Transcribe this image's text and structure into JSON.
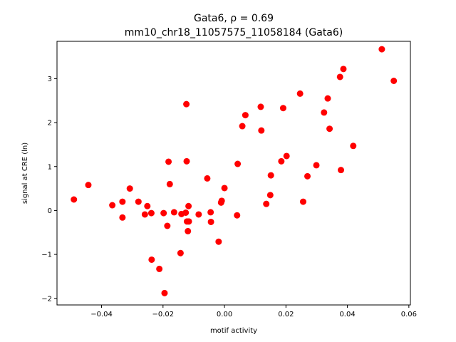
{
  "chart_data": {
    "type": "scatter",
    "title_line1": "Gata6, ρ = 0.69",
    "title_line2": "mm10_chr18_11057575_11058184 (Gata6)",
    "xlabel": "motif activity",
    "ylabel": "signal at CRE (ln)",
    "xlim": [
      -0.0545,
      0.0605
    ],
    "ylim": [
      -2.15,
      3.85
    ],
    "xticks": [
      -0.04,
      -0.02,
      0.0,
      0.02,
      0.04,
      0.06
    ],
    "xtick_labels": [
      "−0.04",
      "−0.02",
      "0.00",
      "0.02",
      "0.04",
      "0.06"
    ],
    "yticks": [
      -2,
      -1,
      0,
      1,
      2,
      3
    ],
    "ytick_labels": [
      "−2",
      "−1",
      "0",
      "1",
      "2",
      "3"
    ],
    "grid": false,
    "marker_color": "#ff0000",
    "points": [
      {
        "x": -0.049,
        "y": 0.25
      },
      {
        "x": -0.0443,
        "y": 0.58
      },
      {
        "x": -0.0365,
        "y": 0.12
      },
      {
        "x": -0.0332,
        "y": 0.2
      },
      {
        "x": -0.0332,
        "y": -0.16
      },
      {
        "x": -0.0308,
        "y": 0.5
      },
      {
        "x": -0.028,
        "y": 0.2
      },
      {
        "x": -0.0259,
        "y": -0.09
      },
      {
        "x": -0.0251,
        "y": 0.1
      },
      {
        "x": -0.0238,
        "y": -0.06
      },
      {
        "x": -0.0237,
        "y": -1.12
      },
      {
        "x": -0.0212,
        "y": -1.33
      },
      {
        "x": -0.0198,
        "y": -0.06
      },
      {
        "x": -0.0195,
        "y": -1.88
      },
      {
        "x": -0.0186,
        "y": -0.35
      },
      {
        "x": -0.0182,
        "y": 1.11
      },
      {
        "x": -0.0178,
        "y": 0.6
      },
      {
        "x": -0.0164,
        "y": -0.04
      },
      {
        "x": -0.0143,
        "y": -0.97
      },
      {
        "x": -0.014,
        "y": -0.08
      },
      {
        "x": -0.0126,
        "y": -0.05
      },
      {
        "x": -0.0124,
        "y": 2.42
      },
      {
        "x": -0.0123,
        "y": 1.12
      },
      {
        "x": -0.0122,
        "y": -0.25
      },
      {
        "x": -0.0119,
        "y": -0.47
      },
      {
        "x": -0.0117,
        "y": 0.1
      },
      {
        "x": -0.0116,
        "y": -0.25
      },
      {
        "x": -0.0084,
        "y": -0.09
      },
      {
        "x": -0.0056,
        "y": 0.73
      },
      {
        "x": -0.0045,
        "y": -0.04
      },
      {
        "x": -0.0044,
        "y": -0.26
      },
      {
        "x": -0.0019,
        "y": -0.71
      },
      {
        "x": -0.0011,
        "y": 0.18
      },
      {
        "x": -0.0009,
        "y": 0.22
      },
      {
        "x": 0.0,
        "y": 0.51
      },
      {
        "x": 0.0041,
        "y": -0.11
      },
      {
        "x": 0.0043,
        "y": 1.06
      },
      {
        "x": 0.0058,
        "y": 1.92
      },
      {
        "x": 0.0068,
        "y": 2.17
      },
      {
        "x": 0.0118,
        "y": 2.36
      },
      {
        "x": 0.012,
        "y": 1.82
      },
      {
        "x": 0.0136,
        "y": 0.15
      },
      {
        "x": 0.0149,
        "y": 0.35
      },
      {
        "x": 0.0151,
        "y": 0.8
      },
      {
        "x": 0.0185,
        "y": 1.12
      },
      {
        "x": 0.0191,
        "y": 2.33
      },
      {
        "x": 0.0202,
        "y": 1.24
      },
      {
        "x": 0.0246,
        "y": 2.66
      },
      {
        "x": 0.0256,
        "y": 0.2
      },
      {
        "x": 0.027,
        "y": 0.78
      },
      {
        "x": 0.0299,
        "y": 1.03
      },
      {
        "x": 0.0324,
        "y": 2.23
      },
      {
        "x": 0.0336,
        "y": 2.55
      },
      {
        "x": 0.0342,
        "y": 1.86
      },
      {
        "x": 0.0376,
        "y": 3.04
      },
      {
        "x": 0.0379,
        "y": 0.92
      },
      {
        "x": 0.0387,
        "y": 3.22
      },
      {
        "x": 0.0419,
        "y": 1.47
      },
      {
        "x": 0.0512,
        "y": 3.67
      },
      {
        "x": 0.0551,
        "y": 2.95
      }
    ]
  }
}
